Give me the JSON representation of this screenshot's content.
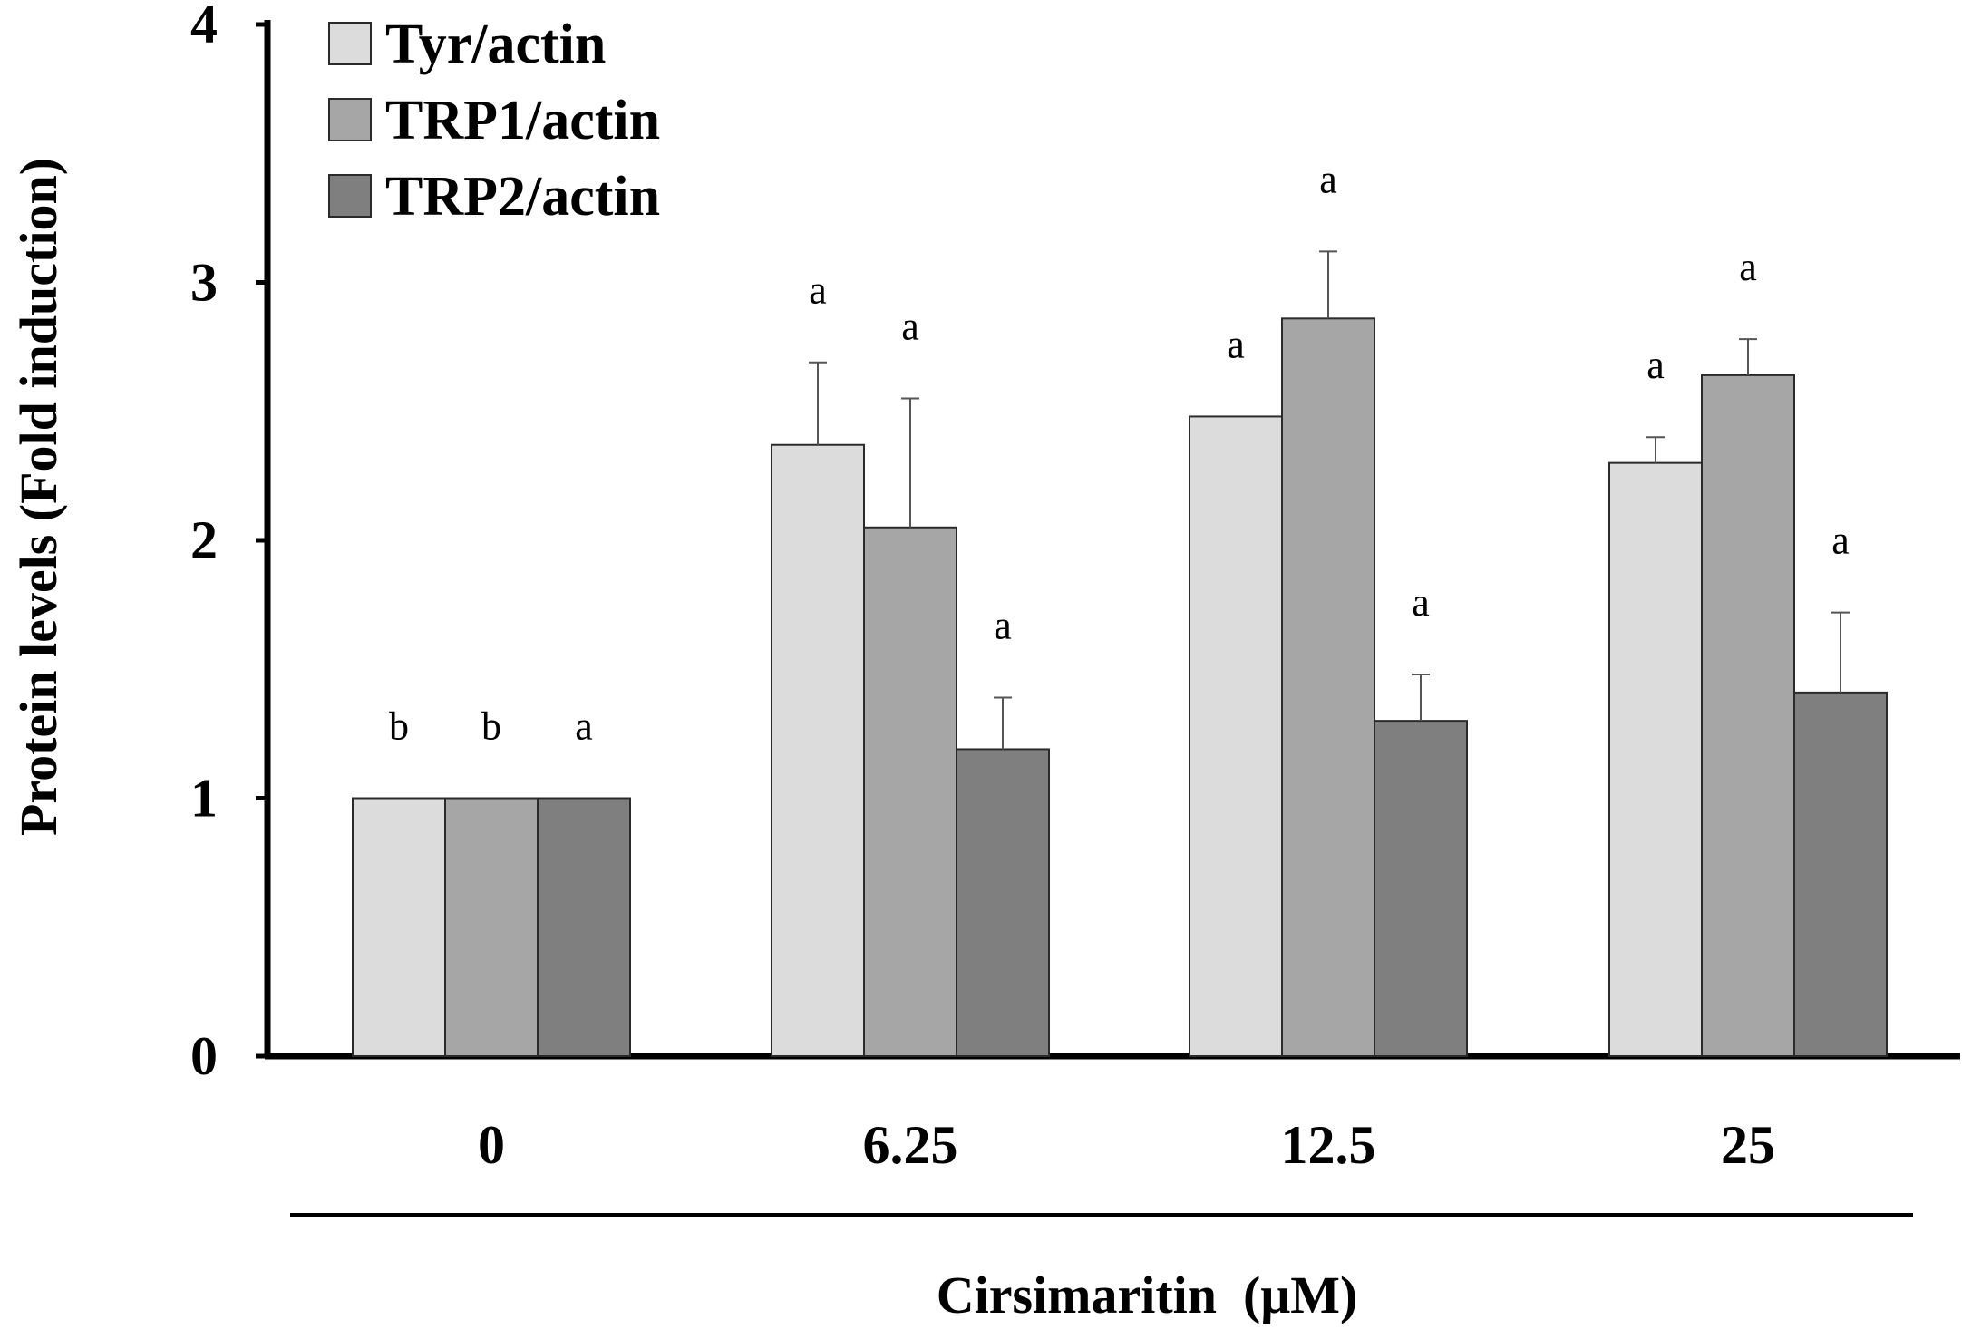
{
  "chart_data": {
    "type": "bar",
    "categories": [
      "0",
      "6.25",
      "12.5",
      "25"
    ],
    "xlabel": "Cirsimaritin  (μM)",
    "ylabel": "Protein levels (Fold induction)",
    "ylim": [
      0,
      4
    ],
    "yticks": [
      "0",
      "1",
      "2",
      "3",
      "4"
    ],
    "legend_position": "top-left",
    "series": [
      {
        "name": "Tyr/actin",
        "color": "#dcdcdc",
        "values": [
          1.0,
          2.37,
          2.48,
          2.3
        ],
        "errors": [
          0.0,
          0.32,
          0.0,
          0.1
        ],
        "significance": [
          "b",
          "a",
          "a",
          "a"
        ]
      },
      {
        "name": "TRP1/actin",
        "color": "#a6a6a6",
        "values": [
          1.0,
          2.05,
          2.86,
          2.64
        ],
        "errors": [
          0.0,
          0.5,
          0.26,
          0.14
        ],
        "significance": [
          "b",
          "a",
          "a",
          "a"
        ]
      },
      {
        "name": "TRP2/actin",
        "color": "#7f7f7f",
        "values": [
          1.0,
          1.19,
          1.3,
          1.41
        ],
        "errors": [
          0.0,
          0.2,
          0.18,
          0.31
        ],
        "significance": [
          "a",
          "a",
          "a",
          "a"
        ]
      }
    ]
  }
}
